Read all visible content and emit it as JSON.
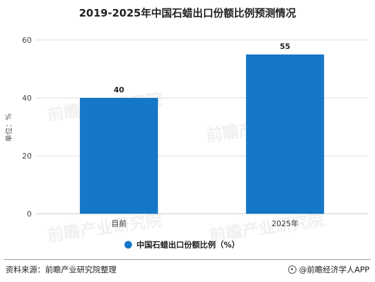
{
  "chart_data": {
    "type": "bar",
    "title": "2019-2025年中国石蜡出口份额比例预测情况",
    "categories": [
      "目前",
      "2025年"
    ],
    "series": [
      {
        "name": "中国石蜡出口份额比例（%）",
        "values": [
          40,
          55
        ],
        "color": "#1677c8"
      }
    ],
    "ylabel": "单位：%",
    "xlabel": "",
    "ylim": [
      0,
      60
    ],
    "yticks": [
      0,
      20,
      40,
      60
    ],
    "grid": true,
    "legend_position": "bottom"
  },
  "watermark": "前瞻产业研究院",
  "footer": {
    "source": "资料来源：前瞻产业研究院整理",
    "brand": "@前瞻经济学人APP",
    "brand_icon": "target-icon"
  }
}
